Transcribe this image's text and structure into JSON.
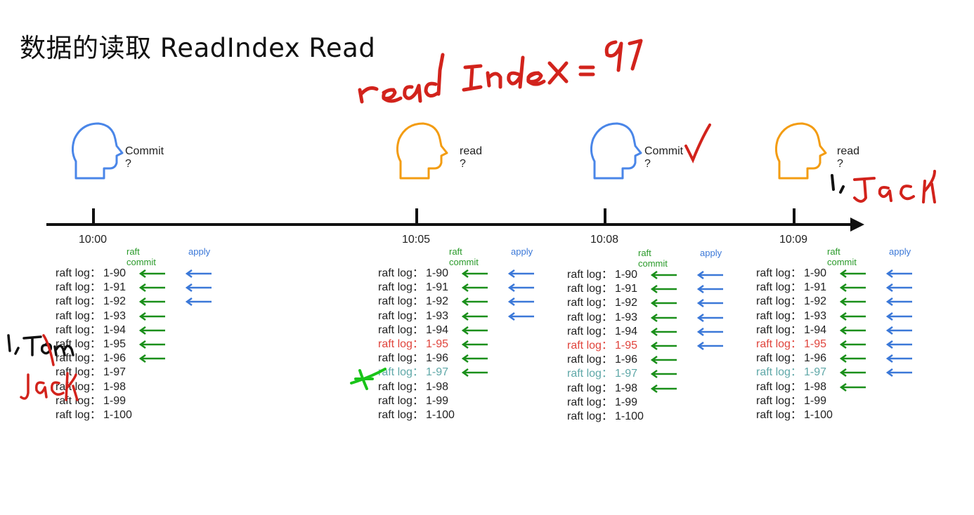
{
  "title": "数据的读取 ReadIndex Read",
  "headers": {
    "commit": "raft commit",
    "apply": "apply"
  },
  "colors": {
    "green": "#1a8f1a",
    "blue": "#3b78d8",
    "red": "#e0443c",
    "teal": "#5fa8a8",
    "orange": "#f39c12"
  },
  "events": [
    {
      "time": "10:00",
      "question": "Commit ?",
      "head_color": "blue",
      "commit_through": 7,
      "apply_through": 3,
      "red_row": -1,
      "teal_row": -1,
      "rows": [
        "1-90",
        "1-91",
        "1-92",
        "1-93",
        "1-94",
        "1-95",
        "1-96",
        "1-97",
        "1-98",
        "1-99",
        "1-100"
      ]
    },
    {
      "time": "10:05",
      "question": "read ?",
      "head_color": "orange",
      "commit_through": 8,
      "apply_through": 4,
      "red_row": 5,
      "teal_row": 7,
      "rows": [
        "1-90",
        "1-91",
        "1-92",
        "1-93",
        "1-94",
        "1-95",
        "1-96",
        "1-97",
        "1-98",
        "1-99",
        "1-100"
      ]
    },
    {
      "time": "10:08",
      "question": "Commit ?",
      "head_color": "blue",
      "commit_through": 9,
      "apply_through": 6,
      "red_row": 5,
      "teal_row": 7,
      "rows": [
        "1-90",
        "1-91",
        "1-92",
        "1-93",
        "1-94",
        "1-95",
        "1-96",
        "1-97",
        "1-98",
        "1-99",
        "1-100"
      ]
    },
    {
      "time": "10:09",
      "question": "read ?",
      "head_color": "orange",
      "commit_through": 9,
      "apply_through": 8,
      "red_row": 5,
      "teal_row": 7,
      "rows": [
        "1-90",
        "1-91",
        "1-92",
        "1-93",
        "1-94",
        "1-95",
        "1-96",
        "1-97",
        "1-98",
        "1-99",
        "1-100"
      ]
    }
  ],
  "log_prefix": "raft log：",
  "handwriting": {
    "read_index": "readIndex = 97",
    "tom": "1,Tom",
    "jack_left": "jack",
    "jack_right": "1, Jack"
  }
}
